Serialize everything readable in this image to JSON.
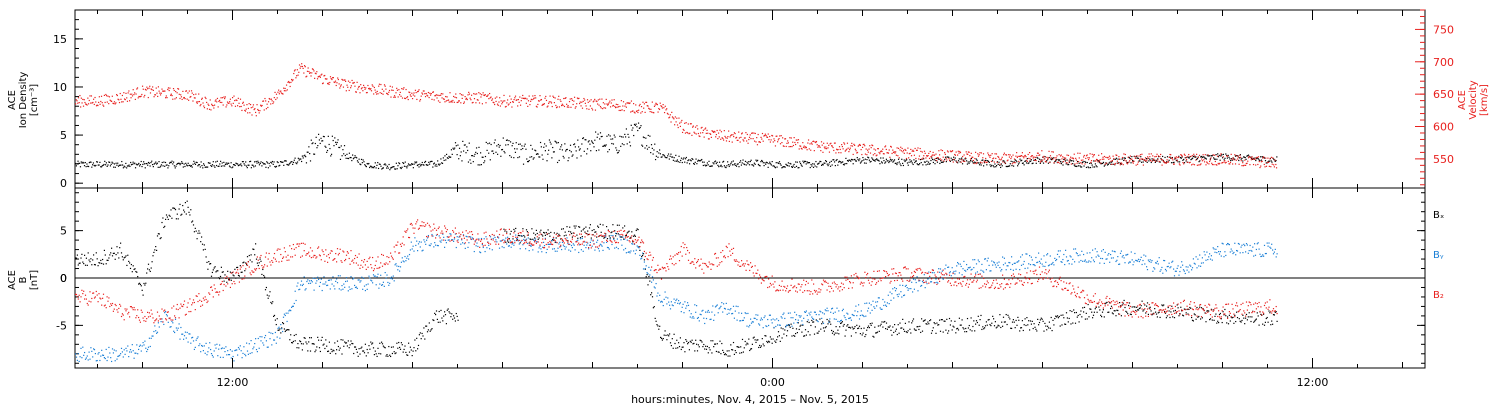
{
  "chart_data": [
    {
      "type": "scatter",
      "panel": "top",
      "ylabel_left": [
        "ACE",
        "Ion Density",
        "[cm⁻³]"
      ],
      "ylabel_right": [
        "ACE",
        "Velocity",
        "[km/s]"
      ],
      "ylim_left": [
        -0.5,
        18
      ],
      "ylim_right": [
        505,
        780
      ],
      "yticks_left": [
        "0",
        "5",
        "10",
        "15"
      ],
      "yticks_right": [
        "550",
        "600",
        "650",
        "700",
        "750"
      ],
      "colors": {
        "density": "#000000",
        "velocity": "#e8201e"
      },
      "series": [
        {
          "axis": "left",
          "values_x_hours": [
            9.0,
            10.0,
            11.0,
            12.0,
            13.0,
            13.5,
            14.0,
            14.5,
            15.0,
            15.5,
            16.0,
            16.5,
            17.0,
            17.5,
            18.0,
            18.5,
            19.0,
            19.5,
            20.0,
            20.5,
            21.0,
            21.5,
            22.0,
            22.5,
            23.0,
            23.5,
            24.0,
            25.0,
            26.0,
            27.0,
            28.0,
            29.0,
            30.0,
            31.0,
            32.0,
            33.0,
            34.0,
            35.0
          ],
          "values_y": [
            2.0,
            2.0,
            2.0,
            2.0,
            2.0,
            2.5,
            4.5,
            3.0,
            2.0,
            1.8,
            2.0,
            2.0,
            3.5,
            3.0,
            4.0,
            3.0,
            3.5,
            3.0,
            4.5,
            4.0,
            5.5,
            3.0,
            2.5,
            2.2,
            2.0,
            2.2,
            2.0,
            2.0,
            2.5,
            2.2,
            2.5,
            2.0,
            2.5,
            2.0,
            2.5,
            2.5,
            2.8,
            2.5
          ]
        },
        {
          "axis": "right",
          "values_x_hours": [
            9.0,
            9.5,
            10.0,
            11.0,
            11.5,
            12.0,
            12.5,
            13.0,
            13.5,
            14.0,
            14.5,
            15.0,
            16.0,
            17.0,
            17.5,
            18.0,
            19.0,
            20.0,
            20.5,
            21.0,
            21.5,
            22.0,
            22.5,
            23.0,
            24.0,
            25.0,
            26.0,
            27.0,
            28.0,
            29.0,
            30.0,
            31.0,
            32.0,
            33.0,
            34.0,
            35.0
          ],
          "values_y": [
            640,
            645,
            655,
            650,
            635,
            640,
            625,
            650,
            690,
            675,
            665,
            660,
            650,
            645,
            645,
            640,
            640,
            635,
            635,
            630,
            630,
            600,
            590,
            585,
            580,
            570,
            565,
            560,
            555,
            550,
            555,
            550,
            550,
            550,
            550,
            545
          ]
        }
      ]
    },
    {
      "type": "scatter",
      "panel": "bottom",
      "ylabel_left": [
        "ACE",
        "B",
        "[nT]"
      ],
      "ylim": [
        -9.5,
        9.5
      ],
      "yticks": [
        "-5",
        "0",
        "5"
      ],
      "legend": [
        {
          "name": "Bₓ",
          "color": "#000000"
        },
        {
          "name": "Bᵧ",
          "color": "#1a7fd6"
        },
        {
          "name": "B₂",
          "color": "#e8201e"
        }
      ],
      "series": [
        {
          "values_x_hours": [
            9.0,
            9.5,
            10.0,
            10.5,
            11.0,
            11.5,
            12.0,
            12.5,
            13.0,
            13.5,
            14.0,
            14.5,
            15.0,
            15.5,
            16.0,
            16.5,
            17.0,
            17.5,
            18.0,
            19.0,
            20.0,
            20.5,
            21.0,
            21.5,
            22.0,
            22.5,
            23.0,
            23.5,
            24.0,
            25.0,
            26.0,
            27.0,
            28.0,
            29.0,
            30.0,
            31.0,
            32.0,
            33.0,
            34.0,
            35.0
          ],
          "values_y": [
            2.0,
            3.0,
            -1.0,
            6.5,
            7.5,
            1.0,
            0.0,
            3.0,
            -5.0,
            -7.0,
            -7.0,
            -7.3,
            -7.5,
            -7.5,
            -7.5,
            -4.0,
            -4.0,
            null,
            4.5,
            4.5,
            5.0,
            5.0,
            4.5,
            -6.0,
            -7.0,
            -7.0,
            -7.5,
            -7.0,
            -6.0,
            -5.0,
            -5.5,
            -5.0,
            -5.0,
            -4.5,
            -5.0,
            -3.5,
            -3.0,
            -3.5,
            -4.0,
            -4.2
          ]
        },
        {
          "values_x_hours": [
            9.0,
            9.5,
            10.0,
            10.5,
            11.0,
            11.5,
            12.0,
            12.5,
            13.0,
            13.5,
            14.0,
            14.5,
            15.0,
            15.5,
            16.0,
            16.5,
            17.0,
            17.5,
            18.0,
            19.0,
            20.0,
            20.5,
            21.0,
            21.5,
            22.0,
            22.5,
            23.0,
            23.5,
            24.0,
            25.0,
            26.0,
            27.0,
            28.0,
            29.0,
            30.0,
            31.0,
            32.0,
            33.0,
            34.0,
            35.0
          ],
          "values_y": [
            -8.0,
            -8.0,
            -7.5,
            -4.0,
            -6.5,
            -7.5,
            -8.0,
            -7.0,
            -6.0,
            -0.5,
            -0.5,
            -0.5,
            -0.5,
            0.0,
            3.5,
            4.0,
            4.0,
            3.5,
            4.0,
            3.5,
            3.5,
            4.0,
            3.0,
            -2.0,
            -3.0,
            -4.0,
            -3.0,
            -4.5,
            -4.5,
            -4.0,
            -3.5,
            -1.0,
            1.0,
            1.5,
            2.0,
            2.5,
            2.0,
            1.0,
            3.0,
            3.0
          ]
        },
        {
          "values_x_hours": [
            9.0,
            9.5,
            10.0,
            10.5,
            11.0,
            11.5,
            12.0,
            12.5,
            13.0,
            13.5,
            14.0,
            14.5,
            15.0,
            15.5,
            16.0,
            16.5,
            17.0,
            17.5,
            18.0,
            19.0,
            20.0,
            20.5,
            21.0,
            21.5,
            22.0,
            22.5,
            23.0,
            23.5,
            24.0,
            25.0,
            26.0,
            27.0,
            28.0,
            29.0,
            30.0,
            31.0,
            32.0,
            33.0,
            34.0,
            35.0
          ],
          "values_y": [
            -2.0,
            -3.5,
            -4.0,
            -4.0,
            -3.0,
            -1.5,
            0.0,
            1.5,
            2.5,
            3.0,
            2.5,
            2.5,
            1.5,
            2.0,
            5.5,
            5.0,
            4.5,
            4.0,
            4.5,
            4.0,
            4.0,
            4.5,
            4.0,
            0.5,
            3.0,
            1.0,
            3.0,
            1.0,
            -0.5,
            -1.0,
            0.0,
            0.5,
            0.0,
            -0.5,
            0.5,
            -2.0,
            -3.5,
            -3.0,
            -3.5,
            -3.0
          ]
        }
      ]
    }
  ],
  "axis_x": {
    "range_hours": [
      8.5,
      38.5
    ],
    "major_ticks": [
      {
        "hours": 12,
        "label": "12:00"
      },
      {
        "hours": 24,
        "label": "0:00"
      },
      {
        "hours": 36,
        "label": "12:00"
      }
    ],
    "label": "hours:minutes, Nov.  4, 2015 – Nov.  5, 2015"
  }
}
